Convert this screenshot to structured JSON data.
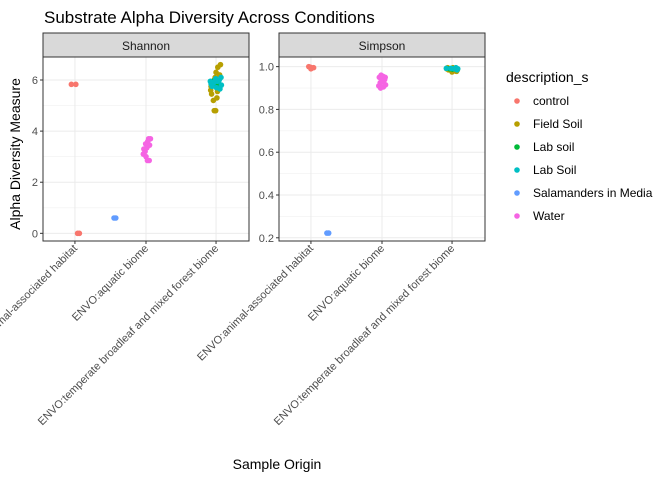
{
  "chart_data": {
    "type": "scatter",
    "title": "Substrate Alpha Diversity Across Conditions",
    "xlabel": "Sample Origin",
    "ylabel": "Alpha Diversity Measure",
    "categories": [
      "ENVO:animal-associated habitat",
      "ENVO:aquatic biome",
      "ENVO:temperate broadleaf and mixed forest biome"
    ],
    "legend": {
      "title": "description_s",
      "position": "right",
      "entries": [
        {
          "label": "control",
          "color": "#F8766D"
        },
        {
          "label": "Field Soil",
          "color": "#B79F00"
        },
        {
          "label": "Lab soil",
          "color": "#00BA38"
        },
        {
          "label": "Lab Soil",
          "color": "#00BFC4"
        },
        {
          "label": "Salamanders in Media",
          "color": "#619CFF"
        },
        {
          "label": "Water",
          "color": "#F564E3"
        }
      ]
    },
    "grid": true,
    "panels": [
      {
        "strip": "Shannon",
        "ylim": [
          -0.3,
          6.9
        ],
        "yticks": [
          0,
          2,
          4,
          6
        ],
        "ytick_labels": [
          "0",
          "2",
          "4",
          "6"
        ],
        "points": [
          {
            "cat": 0,
            "jit": -0.2,
            "y": 5.83,
            "group": "control"
          },
          {
            "cat": 0,
            "jit": 0.05,
            "y": 5.83,
            "group": "control"
          },
          {
            "cat": 0,
            "jit": 0.15,
            "y": 0.0,
            "group": "control"
          },
          {
            "cat": 0,
            "jit": 0.25,
            "y": 0.0,
            "group": "control"
          },
          {
            "cat": 0,
            "jit": 2.2,
            "y": 0.6,
            "group": "Salamanders in Media"
          },
          {
            "cat": 0,
            "jit": 2.3,
            "y": 0.6,
            "group": "Salamanders in Media"
          },
          {
            "cat": 1,
            "jit": -0.15,
            "y": 3.1,
            "group": "Water"
          },
          {
            "cat": 1,
            "jit": -0.05,
            "y": 3.2,
            "group": "Water"
          },
          {
            "cat": 1,
            "jit": 0.05,
            "y": 3.35,
            "group": "Water"
          },
          {
            "cat": 1,
            "jit": 0.15,
            "y": 3.7,
            "group": "Water"
          },
          {
            "cat": 1,
            "jit": 0.25,
            "y": 3.7,
            "group": "Water"
          },
          {
            "cat": 1,
            "jit": 0.1,
            "y": 3.6,
            "group": "Water"
          },
          {
            "cat": 1,
            "jit": -0.12,
            "y": 3.3,
            "group": "Water"
          },
          {
            "cat": 1,
            "jit": 0.0,
            "y": 3.0,
            "group": "Water"
          },
          {
            "cat": 1,
            "jit": 0.08,
            "y": 2.85,
            "group": "Water"
          },
          {
            "cat": 1,
            "jit": 0.18,
            "y": 2.85,
            "group": "Water"
          },
          {
            "cat": 1,
            "jit": 0.2,
            "y": 3.45,
            "group": "Water"
          },
          {
            "cat": 1,
            "jit": -0.02,
            "y": 3.5,
            "group": "Water"
          },
          {
            "cat": 2,
            "jit": -0.3,
            "y": 5.6,
            "group": "Field Soil"
          },
          {
            "cat": 2,
            "jit": -0.2,
            "y": 5.9,
            "group": "Field Soil"
          },
          {
            "cat": 2,
            "jit": -0.1,
            "y": 6.0,
            "group": "Field Soil"
          },
          {
            "cat": 2,
            "jit": 0.0,
            "y": 6.3,
            "group": "Field Soil"
          },
          {
            "cat": 2,
            "jit": 0.1,
            "y": 6.5,
            "group": "Field Soil"
          },
          {
            "cat": 2,
            "jit": 0.25,
            "y": 6.6,
            "group": "Field Soil"
          },
          {
            "cat": 2,
            "jit": -0.1,
            "y": 4.8,
            "group": "Field Soil"
          },
          {
            "cat": 2,
            "jit": -0.02,
            "y": 4.8,
            "group": "Field Soil"
          },
          {
            "cat": 2,
            "jit": -0.25,
            "y": 5.45,
            "group": "Field Soil"
          },
          {
            "cat": 2,
            "jit": 0.05,
            "y": 5.3,
            "group": "Field Soil"
          },
          {
            "cat": 2,
            "jit": -0.15,
            "y": 5.2,
            "group": "Field Soil"
          },
          {
            "cat": 2,
            "jit": 0.2,
            "y": 6.2,
            "group": "Field Soil"
          },
          {
            "cat": 2,
            "jit": -0.05,
            "y": 6.1,
            "group": "Field Soil"
          },
          {
            "cat": 2,
            "jit": 0.12,
            "y": 5.7,
            "group": "Field Soil"
          },
          {
            "cat": 2,
            "jit": -0.28,
            "y": 5.75,
            "group": "Field Soil"
          },
          {
            "cat": 2,
            "jit": 0.08,
            "y": 5.55,
            "group": "Field Soil"
          },
          {
            "cat": 2,
            "jit": -0.05,
            "y": 5.8,
            "group": "Lab soil"
          },
          {
            "cat": 2,
            "jit": 0.15,
            "y": 5.85,
            "group": "Lab soil"
          },
          {
            "cat": 2,
            "jit": -0.18,
            "y": 5.95,
            "group": "Lab soil"
          },
          {
            "cat": 2,
            "jit": -0.32,
            "y": 5.95,
            "group": "Lab Soil"
          },
          {
            "cat": 2,
            "jit": -0.22,
            "y": 5.75,
            "group": "Lab Soil"
          },
          {
            "cat": 2,
            "jit": -0.12,
            "y": 5.9,
            "group": "Lab Soil"
          },
          {
            "cat": 2,
            "jit": -0.02,
            "y": 6.05,
            "group": "Lab Soil"
          },
          {
            "cat": 2,
            "jit": 0.08,
            "y": 5.95,
            "group": "Lab Soil"
          },
          {
            "cat": 2,
            "jit": 0.18,
            "y": 6.0,
            "group": "Lab Soil"
          },
          {
            "cat": 2,
            "jit": 0.28,
            "y": 6.1,
            "group": "Lab Soil"
          },
          {
            "cat": 2,
            "jit": 0.3,
            "y": 5.8,
            "group": "Lab Soil"
          },
          {
            "cat": 2,
            "jit": -0.28,
            "y": 5.85,
            "group": "Lab Soil"
          },
          {
            "cat": 2,
            "jit": 0.02,
            "y": 5.7,
            "group": "Lab Soil"
          },
          {
            "cat": 2,
            "jit": 0.22,
            "y": 5.65,
            "group": "Lab Soil"
          }
        ]
      },
      {
        "strip": "Simpson",
        "ylim": [
          0.185,
          1.045
        ],
        "yticks": [
          0.2,
          0.4,
          0.6,
          0.8,
          1.0
        ],
        "ytick_labels": [
          "0.2",
          "0.4",
          "0.6",
          "0.8",
          "1.0"
        ],
        "points": [
          {
            "cat": 0,
            "jit": -0.12,
            "y": 1.0,
            "group": "control"
          },
          {
            "cat": 0,
            "jit": -0.02,
            "y": 0.997,
            "group": "control"
          },
          {
            "cat": 0,
            "jit": 0.0,
            "y": 0.99,
            "group": "control"
          },
          {
            "cat": 0,
            "jit": 0.15,
            "y": 0.995,
            "group": "control"
          },
          {
            "cat": 0,
            "jit": 0.9,
            "y": 0.222,
            "group": "Salamanders in Media"
          },
          {
            "cat": 0,
            "jit": 1.0,
            "y": 0.222,
            "group": "Salamanders in Media"
          },
          {
            "cat": 1,
            "jit": -0.15,
            "y": 0.95,
            "group": "Water"
          },
          {
            "cat": 1,
            "jit": -0.05,
            "y": 0.96,
            "group": "Water"
          },
          {
            "cat": 1,
            "jit": 0.05,
            "y": 0.955,
            "group": "Water"
          },
          {
            "cat": 1,
            "jit": 0.15,
            "y": 0.94,
            "group": "Water"
          },
          {
            "cat": 1,
            "jit": -0.1,
            "y": 0.925,
            "group": "Water"
          },
          {
            "cat": 1,
            "jit": 0.0,
            "y": 0.93,
            "group": "Water"
          },
          {
            "cat": 1,
            "jit": 0.1,
            "y": 0.935,
            "group": "Water"
          },
          {
            "cat": 1,
            "jit": 0.2,
            "y": 0.915,
            "group": "Water"
          },
          {
            "cat": 1,
            "jit": -0.18,
            "y": 0.91,
            "group": "Water"
          },
          {
            "cat": 1,
            "jit": -0.08,
            "y": 0.9,
            "group": "Water"
          },
          {
            "cat": 1,
            "jit": 0.08,
            "y": 0.905,
            "group": "Water"
          },
          {
            "cat": 1,
            "jit": 0.18,
            "y": 0.95,
            "group": "Water"
          },
          {
            "cat": 2,
            "jit": -0.3,
            "y": 0.99,
            "group": "Field Soil"
          },
          {
            "cat": 2,
            "jit": -0.2,
            "y": 0.985,
            "group": "Field Soil"
          },
          {
            "cat": 2,
            "jit": -0.1,
            "y": 0.99,
            "group": "Field Soil"
          },
          {
            "cat": 2,
            "jit": 0.0,
            "y": 0.975,
            "group": "Field Soil"
          },
          {
            "cat": 2,
            "jit": 0.1,
            "y": 0.98,
            "group": "Field Soil"
          },
          {
            "cat": 2,
            "jit": 0.2,
            "y": 0.99,
            "group": "Field Soil"
          },
          {
            "cat": 2,
            "jit": 0.3,
            "y": 0.985,
            "group": "Field Soil"
          },
          {
            "cat": 2,
            "jit": -0.25,
            "y": 0.995,
            "group": "Field Soil"
          },
          {
            "cat": 2,
            "jit": 0.05,
            "y": 0.995,
            "group": "Field Soil"
          },
          {
            "cat": 2,
            "jit": 0.25,
            "y": 0.978,
            "group": "Field Soil"
          },
          {
            "cat": 2,
            "jit": -0.15,
            "y": 0.99,
            "group": "Lab soil"
          },
          {
            "cat": 2,
            "jit": 0.15,
            "y": 0.992,
            "group": "Lab soil"
          },
          {
            "cat": 2,
            "jit": 0.03,
            "y": 0.988,
            "group": "Lab soil"
          },
          {
            "cat": 2,
            "jit": -0.05,
            "y": 0.992,
            "group": "Lab Soil"
          },
          {
            "cat": 2,
            "jit": 0.12,
            "y": 0.99,
            "group": "Lab Soil"
          },
          {
            "cat": 2,
            "jit": 0.22,
            "y": 0.995,
            "group": "Lab Soil"
          },
          {
            "cat": 2,
            "jit": 0.32,
            "y": 0.99,
            "group": "Lab Soil"
          },
          {
            "cat": 2,
            "jit": -0.32,
            "y": 0.992,
            "group": "Lab Soil"
          },
          {
            "cat": 2,
            "jit": 0.28,
            "y": 0.985,
            "group": "Lab Soil"
          }
        ]
      }
    ]
  }
}
